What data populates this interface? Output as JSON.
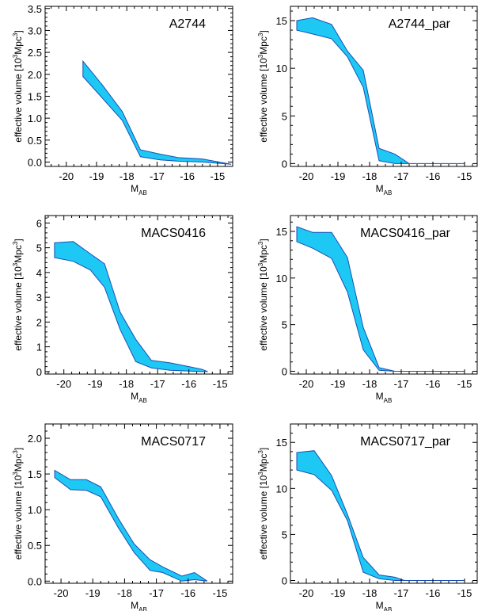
{
  "figure": {
    "fill_color": "#1ec8f5",
    "edge_color": "#1a4fb4"
  },
  "chart_data": [
    {
      "type": "area",
      "title": "A2744",
      "xlabel": "M",
      "xlabel_sub": "AB",
      "ylabel": "effective volume [10",
      "ylabel_sup": "3",
      "ylabel_tail": "Mpc",
      "ylabel_sup2": "3",
      "ylabel_end": "]",
      "xlim": [
        -20.7,
        -14.5
      ],
      "ylim": [
        -0.1,
        3.55
      ],
      "x_ticks": [
        -20,
        -19,
        -18,
        -17,
        -16,
        -15
      ],
      "y_ticks": [
        0.0,
        0.5,
        1.0,
        1.5,
        2.0,
        2.5,
        3.0,
        3.5
      ],
      "y_tick_labels": [
        "0.0",
        "0.5",
        "1.0",
        "1.5",
        "2.0",
        "2.5",
        "3.0",
        "3.5"
      ],
      "x": [
        -19.45,
        -18.8,
        -18.15,
        -17.55,
        -16.9,
        -16.3,
        -15.5,
        -14.55
      ],
      "upper": [
        2.3,
        1.75,
        1.15,
        0.28,
        0.18,
        0.1,
        0.07,
        -0.05
      ],
      "lower": [
        1.95,
        1.45,
        0.95,
        0.12,
        0.05,
        0.02,
        0.0,
        -0.05
      ]
    },
    {
      "type": "area",
      "title": "A2744_par",
      "xlabel": "M",
      "xlabel_sub": "AB",
      "ylabel": "effective volume [10",
      "ylabel_sup": "3",
      "ylabel_tail": "Mpc",
      "ylabel_sup2": "3",
      "ylabel_end": "]",
      "xlim": [
        -20.5,
        -14.6
      ],
      "ylim": [
        -0.3,
        16.5
      ],
      "x_ticks": [
        -20,
        -19,
        -18,
        -17,
        -16,
        -15
      ],
      "y_ticks": [
        0,
        5,
        10,
        15
      ],
      "y_tick_labels": [
        "0",
        "5",
        "10",
        "15"
      ],
      "x": [
        -20.3,
        -19.8,
        -19.2,
        -18.7,
        -18.2,
        -17.7,
        -17.2,
        -16.75,
        -15.0
      ],
      "upper": [
        15.0,
        15.3,
        14.6,
        11.8,
        9.8,
        1.6,
        1.0,
        0.0,
        0.0
      ],
      "lower": [
        14.0,
        13.6,
        13.1,
        11.2,
        8.0,
        0.3,
        0.0,
        0.0,
        0.0
      ]
    },
    {
      "type": "area",
      "title": "MACS0416",
      "xlabel": "M",
      "xlabel_sub": "AB",
      "ylabel": "effective volume [10",
      "ylabel_sup": "3",
      "ylabel_tail": "Mpc",
      "ylabel_sup2": "3",
      "ylabel_end": "]",
      "xlim": [
        -20.6,
        -14.6
      ],
      "ylim": [
        -0.1,
        6.3
      ],
      "x_ticks": [
        -20,
        -19,
        -18,
        -17,
        -16,
        -15
      ],
      "y_ticks": [
        0,
        1,
        2,
        3,
        4,
        5,
        6
      ],
      "y_tick_labels": [
        "0",
        "1",
        "2",
        "3",
        "4",
        "5",
        "6"
      ],
      "x": [
        -20.3,
        -19.7,
        -19.15,
        -18.7,
        -18.2,
        -17.7,
        -17.2,
        -16.6,
        -16.0,
        -15.6,
        -15.4
      ],
      "upper": [
        5.2,
        5.25,
        4.75,
        4.35,
        2.4,
        1.3,
        0.45,
        0.35,
        0.2,
        0.1,
        0.0
      ],
      "lower": [
        4.6,
        4.45,
        4.1,
        3.4,
        1.7,
        0.4,
        0.15,
        0.05,
        0.02,
        0.0,
        0.0
      ]
    },
    {
      "type": "area",
      "title": "MACS0416_par",
      "xlabel": "M",
      "xlabel_sub": "AB",
      "ylabel": "effective volume [10",
      "ylabel_sup": "3",
      "ylabel_tail": "Mpc",
      "ylabel_sup2": "3",
      "ylabel_end": "]",
      "xlim": [
        -20.5,
        -14.6
      ],
      "ylim": [
        -0.3,
        16.7
      ],
      "x_ticks": [
        -20,
        -19,
        -18,
        -17,
        -16,
        -15
      ],
      "y_ticks": [
        0,
        5,
        10,
        15
      ],
      "y_tick_labels": [
        "0",
        "5",
        "10",
        "15"
      ],
      "x": [
        -20.3,
        -19.8,
        -19.2,
        -18.7,
        -18.2,
        -17.7,
        -17.2,
        -15.0
      ],
      "upper": [
        15.5,
        14.9,
        14.9,
        12.2,
        4.7,
        0.4,
        0.0,
        0.0
      ],
      "lower": [
        13.9,
        13.2,
        12.1,
        8.5,
        2.3,
        0.1,
        0.0,
        0.0
      ]
    },
    {
      "type": "area",
      "title": "MACS0717",
      "xlabel": "M",
      "xlabel_sub": "AB",
      "ylabel": "effective volume [10",
      "ylabel_sup": "3",
      "ylabel_tail": "Mpc",
      "ylabel_sup2": "3",
      "ylabel_end": "]",
      "xlim": [
        -20.5,
        -14.6
      ],
      "ylim": [
        -0.03,
        2.2
      ],
      "x_ticks": [
        -20,
        -19,
        -18,
        -17,
        -16,
        -15
      ],
      "y_ticks": [
        0.0,
        0.5,
        1.0,
        1.5,
        2.0
      ],
      "y_tick_labels": [
        "0.0",
        "0.5",
        "1.0",
        "1.5",
        "2.0"
      ],
      "x": [
        -20.2,
        -19.7,
        -19.2,
        -18.75,
        -18.2,
        -17.7,
        -17.2,
        -16.8,
        -16.2,
        -15.8,
        -15.4
      ],
      "upper": [
        1.55,
        1.42,
        1.42,
        1.32,
        0.88,
        0.52,
        0.3,
        0.2,
        0.07,
        0.12,
        0.0
      ],
      "lower": [
        1.45,
        1.28,
        1.27,
        1.18,
        0.75,
        0.4,
        0.15,
        0.12,
        0.0,
        0.02,
        0.0
      ]
    },
    {
      "type": "area",
      "title": "MACS0717_par",
      "xlabel": "M",
      "xlabel_sub": "AB",
      "ylabel": "effective volume [10",
      "ylabel_sup": "3",
      "ylabel_tail": "Mpc",
      "ylabel_sup2": "3",
      "ylabel_end": "]",
      "xlim": [
        -20.5,
        -14.6
      ],
      "ylim": [
        -0.3,
        17.0
      ],
      "x_ticks": [
        -20,
        -19,
        -18,
        -17,
        -16,
        -15
      ],
      "y_ticks": [
        0,
        5,
        10,
        15
      ],
      "y_tick_labels": [
        "0",
        "5",
        "10",
        "15"
      ],
      "x": [
        -20.3,
        -19.75,
        -19.2,
        -18.7,
        -18.2,
        -17.7,
        -17.2,
        -16.9,
        -15.0
      ],
      "upper": [
        13.9,
        14.1,
        11.4,
        7.2,
        2.5,
        0.6,
        0.35,
        0.0,
        0.0
      ],
      "lower": [
        12.0,
        11.5,
        9.8,
        6.5,
        0.9,
        0.2,
        0.0,
        0.0,
        0.0
      ]
    }
  ]
}
